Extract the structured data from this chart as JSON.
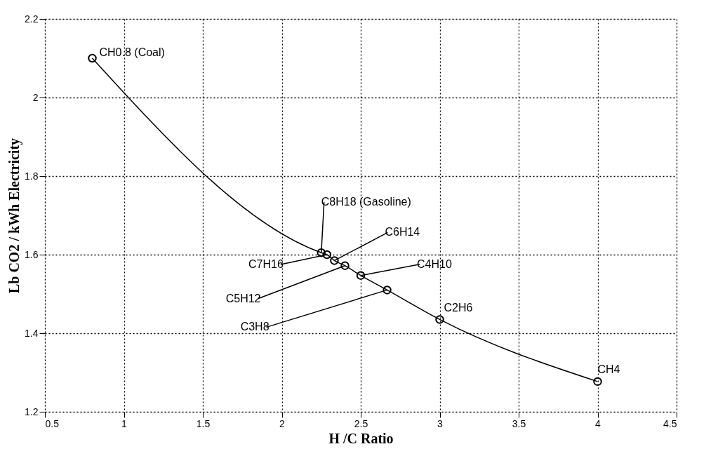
{
  "chart_data": {
    "type": "line",
    "xlabel": "H /C Ratio",
    "ylabel": "Lb CO2 / kWh Electricity",
    "x": [
      0.8,
      2.25,
      2.286,
      2.333,
      2.4,
      2.5,
      2.667,
      3,
      4
    ],
    "series": [
      {
        "color": "#000000",
        "values": [
          2.1,
          1.605,
          1.6,
          1.585,
          1.572,
          1.547,
          1.51,
          1.435,
          1.277
        ]
      }
    ],
    "xlim": [
      0.5,
      4.5
    ],
    "xticks": [
      0.5,
      1,
      1.5,
      2,
      2.5,
      3,
      3.5,
      4,
      4.5
    ],
    "ylim": [
      1.2,
      2.2
    ],
    "yticks": [
      1.2,
      1.4,
      1.6,
      1.8,
      2,
      2.2
    ],
    "grid": true,
    "marker": "circle",
    "line_style": "solid",
    "annotations": [
      {
        "text": "CH0.8 (Coal)",
        "x": 0.8,
        "y": 2.1
      },
      {
        "text": "C8H18 (Gasoline)",
        "x": 2.25,
        "y": 1.605
      },
      {
        "text": "C7H16",
        "x": 2.286,
        "y": 1.6
      },
      {
        "text": "C6H14",
        "x": 2.333,
        "y": 1.585
      },
      {
        "text": "C5H12",
        "x": 2.4,
        "y": 1.572
      },
      {
        "text": "C4H10",
        "x": 2.5,
        "y": 1.547
      },
      {
        "text": "C3H8",
        "x": 2.667,
        "y": 1.51
      },
      {
        "text": "C2H6",
        "x": 3,
        "y": 1.435
      },
      {
        "text": "CH4",
        "x": 4,
        "y": 1.277
      }
    ]
  }
}
